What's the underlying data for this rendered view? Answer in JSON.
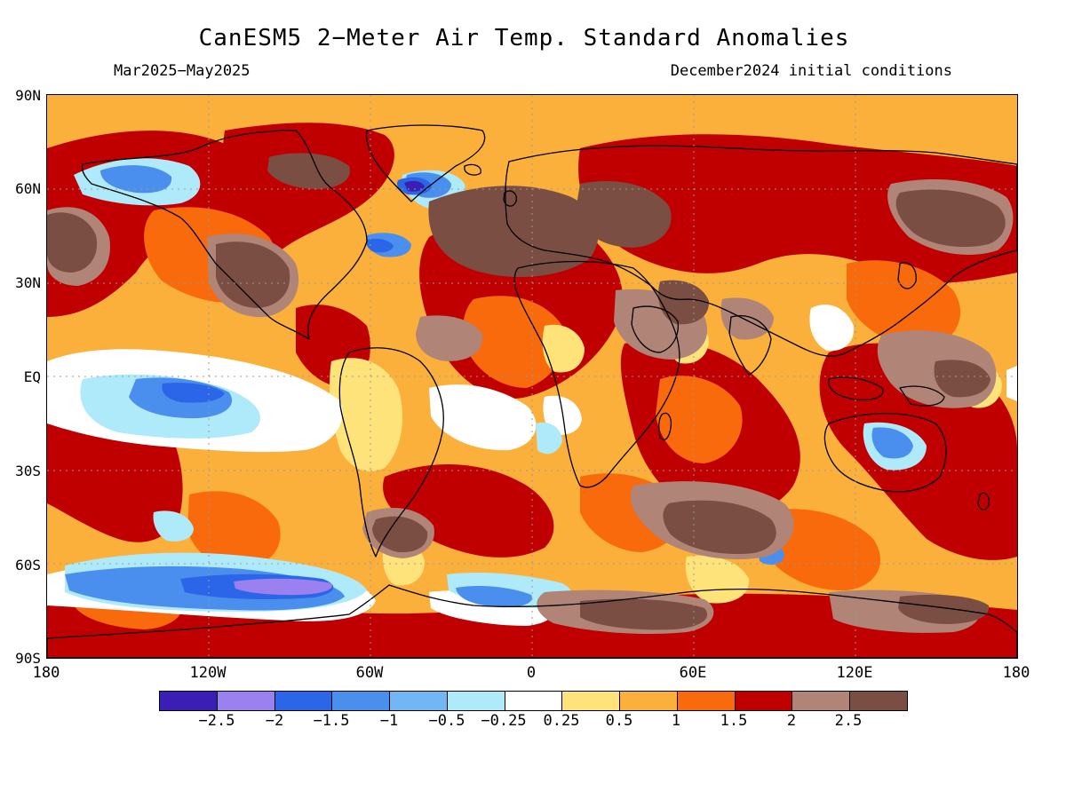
{
  "header": {
    "title": "CanESM5 2−Meter Air Temp. Standard Anomalies",
    "period": "Mar2025−May2025",
    "init": "December2024 initial conditions"
  },
  "axes": {
    "lat_labels": [
      "90N",
      "60N",
      "30N",
      "EQ",
      "30S",
      "60S",
      "90S"
    ],
    "lon_labels": [
      "180",
      "120W",
      "60W",
      "0",
      "60E",
      "120E",
      "180"
    ]
  },
  "colorbar": {
    "colors": [
      "#3b1fb5",
      "#9b80f0",
      "#2b65e8",
      "#4a8fee",
      "#73b6f5",
      "#aeeaf9",
      "#ffffff",
      "#fee37a",
      "#fbb03b",
      "#f86a0c",
      "#c00000",
      "#b08477",
      "#7a4e42"
    ],
    "labels": [
      "−2.5",
      "−2",
      "−1.5",
      "−1",
      "−0.5",
      "−0.25",
      "0.25",
      "0.5",
      "1",
      "1.5",
      "2",
      "2.5"
    ]
  },
  "palette": {
    "ocean_warm": "#fbb03b",
    "coastline": "#000000",
    "grid": "#999999"
  }
}
